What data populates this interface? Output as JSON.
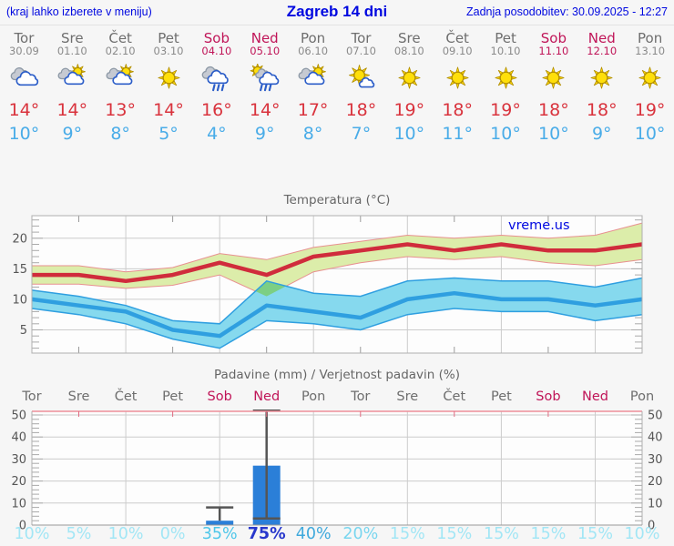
{
  "header": {
    "left_note": "(kraj lahko izberete v meniju)",
    "title": "Zagreb 14 dni",
    "updated": "Zadnja posodobitev: 30.09.2025 - 12:27"
  },
  "days": [
    {
      "name": "Tor",
      "date": "30.09",
      "weekend": false,
      "icon": "cloudy",
      "tmax": 14,
      "tmin": 10
    },
    {
      "name": "Sre",
      "date": "01.10",
      "weekend": false,
      "icon": "partly-cloudy",
      "tmax": 14,
      "tmin": 9
    },
    {
      "name": "Čet",
      "date": "02.10",
      "weekend": false,
      "icon": "partly-cloudy",
      "tmax": 13,
      "tmin": 8
    },
    {
      "name": "Pet",
      "date": "03.10",
      "weekend": false,
      "icon": "sunny",
      "tmax": 14,
      "tmin": 5
    },
    {
      "name": "Sob",
      "date": "04.10",
      "weekend": true,
      "icon": "rain",
      "tmax": 16,
      "tmin": 4
    },
    {
      "name": "Ned",
      "date": "05.10",
      "weekend": true,
      "icon": "sun-rain",
      "tmax": 14,
      "tmin": 9
    },
    {
      "name": "Pon",
      "date": "06.10",
      "weekend": false,
      "icon": "partly-cloudy",
      "tmax": 17,
      "tmin": 8
    },
    {
      "name": "Tor",
      "date": "07.10",
      "weekend": false,
      "icon": "mostly-sunny",
      "tmax": 18,
      "tmin": 7
    },
    {
      "name": "Sre",
      "date": "08.10",
      "weekend": false,
      "icon": "sunny",
      "tmax": 19,
      "tmin": 10
    },
    {
      "name": "Čet",
      "date": "09.10",
      "weekend": false,
      "icon": "sunny",
      "tmax": 18,
      "tmin": 11
    },
    {
      "name": "Pet",
      "date": "10.10",
      "weekend": false,
      "icon": "sunny",
      "tmax": 19,
      "tmin": 10
    },
    {
      "name": "Sob",
      "date": "11.10",
      "weekend": true,
      "icon": "sunny",
      "tmax": 18,
      "tmin": 10
    },
    {
      "name": "Ned",
      "date": "12.10",
      "weekend": true,
      "icon": "sunny",
      "tmax": 18,
      "tmin": 9
    },
    {
      "name": "Pon",
      "date": "13.10",
      "weekend": false,
      "icon": "sunny",
      "tmax": 19,
      "tmin": 10
    }
  ],
  "colors": {
    "header_blue": "#0008e0",
    "weekend": "#c01558",
    "weekday": "#6e6e6e",
    "tmax_text": "#d9333d",
    "tmin_text": "#49ace8",
    "tmax_line": "#d02c3c",
    "tmax_band": "#dcedaa",
    "tmax_band_edge": "#e89090",
    "tmin_line": "#2f9fe0",
    "tmin_band": "#86d9ee",
    "band_overlap": "#7ccf84",
    "precip_bar": "#2b7fd8",
    "whisker": "#555555",
    "grid": "#cccccc",
    "axis": "#9a9a9a",
    "axis_text": "#555555",
    "precip_top_line": "#ee8f9a"
  },
  "chart_data": [
    {
      "type": "line",
      "title": "Temperatura (°C)",
      "watermark": "vreme.us",
      "categories": [
        "Tor 30.09",
        "Sre 01.10",
        "Čet 02.10",
        "Pet 03.10",
        "Sob 04.10",
        "Ned 05.10",
        "Pon 06.10",
        "Tor 07.10",
        "Sre 08.10",
        "Čet 09.10",
        "Pet 10.10",
        "Sob 11.10",
        "Ned 12.10",
        "Pon 13.10"
      ],
      "ylim": [
        1.2,
        23.7
      ],
      "yticks": [
        5,
        10,
        15,
        20
      ],
      "grid": true,
      "series": [
        {
          "name": "t_max",
          "values": [
            14,
            14,
            13,
            14,
            16,
            14,
            17,
            18,
            19,
            18,
            19,
            18,
            18,
            19
          ]
        },
        {
          "name": "t_min",
          "values": [
            10,
            9,
            8,
            5,
            4,
            9,
            8,
            7,
            10,
            11,
            10,
            10,
            9,
            10
          ]
        },
        {
          "name": "t_max_band_upper",
          "values": [
            15.5,
            15.5,
            14.5,
            15.2,
            17.5,
            16.5,
            18.5,
            19.5,
            20.5,
            20,
            20.5,
            20,
            20.5,
            22.5
          ]
        },
        {
          "name": "t_max_band_lower",
          "values": [
            12.5,
            12.5,
            11.8,
            12.3,
            14,
            10.5,
            14.5,
            16,
            17,
            16.5,
            17,
            16,
            15.5,
            16.5
          ]
        },
        {
          "name": "t_min_band_upper",
          "values": [
            11.5,
            10.5,
            9,
            6.5,
            6,
            13,
            11,
            10.5,
            13,
            13.5,
            13,
            13,
            12,
            13.5
          ]
        },
        {
          "name": "t_min_band_lower",
          "values": [
            8.5,
            7.5,
            6,
            3.5,
            2,
            6.5,
            6,
            5,
            7.5,
            8.5,
            8,
            8,
            6.5,
            7.5
          ]
        }
      ]
    },
    {
      "type": "bar",
      "title": "Padavine (mm) / Verjetnost padavin (%)",
      "day_labels": [
        "Tor",
        "Sre",
        "Čet",
        "Pet",
        "Sob",
        "Ned",
        "Pon",
        "Tor",
        "Sre",
        "Čet",
        "Pet",
        "Sob",
        "Ned",
        "Pon"
      ],
      "ylim": [
        0,
        52
      ],
      "yticks": [
        0,
        10,
        20,
        30,
        40,
        50
      ],
      "grid": true,
      "precip_mm": [
        0,
        0,
        0,
        0,
        2,
        27,
        0,
        0,
        0,
        0,
        0,
        0,
        0,
        0
      ],
      "precip_max_mm": [
        null,
        null,
        null,
        null,
        8,
        52,
        null,
        null,
        null,
        null,
        null,
        null,
        null,
        null
      ],
      "precip_min_mm": [
        null,
        null,
        null,
        null,
        null,
        3,
        null,
        null,
        null,
        null,
        null,
        null,
        null,
        null
      ],
      "probability_pct": [
        10,
        5,
        10,
        0,
        35,
        75,
        40,
        20,
        15,
        15,
        15,
        15,
        15,
        10
      ]
    }
  ]
}
